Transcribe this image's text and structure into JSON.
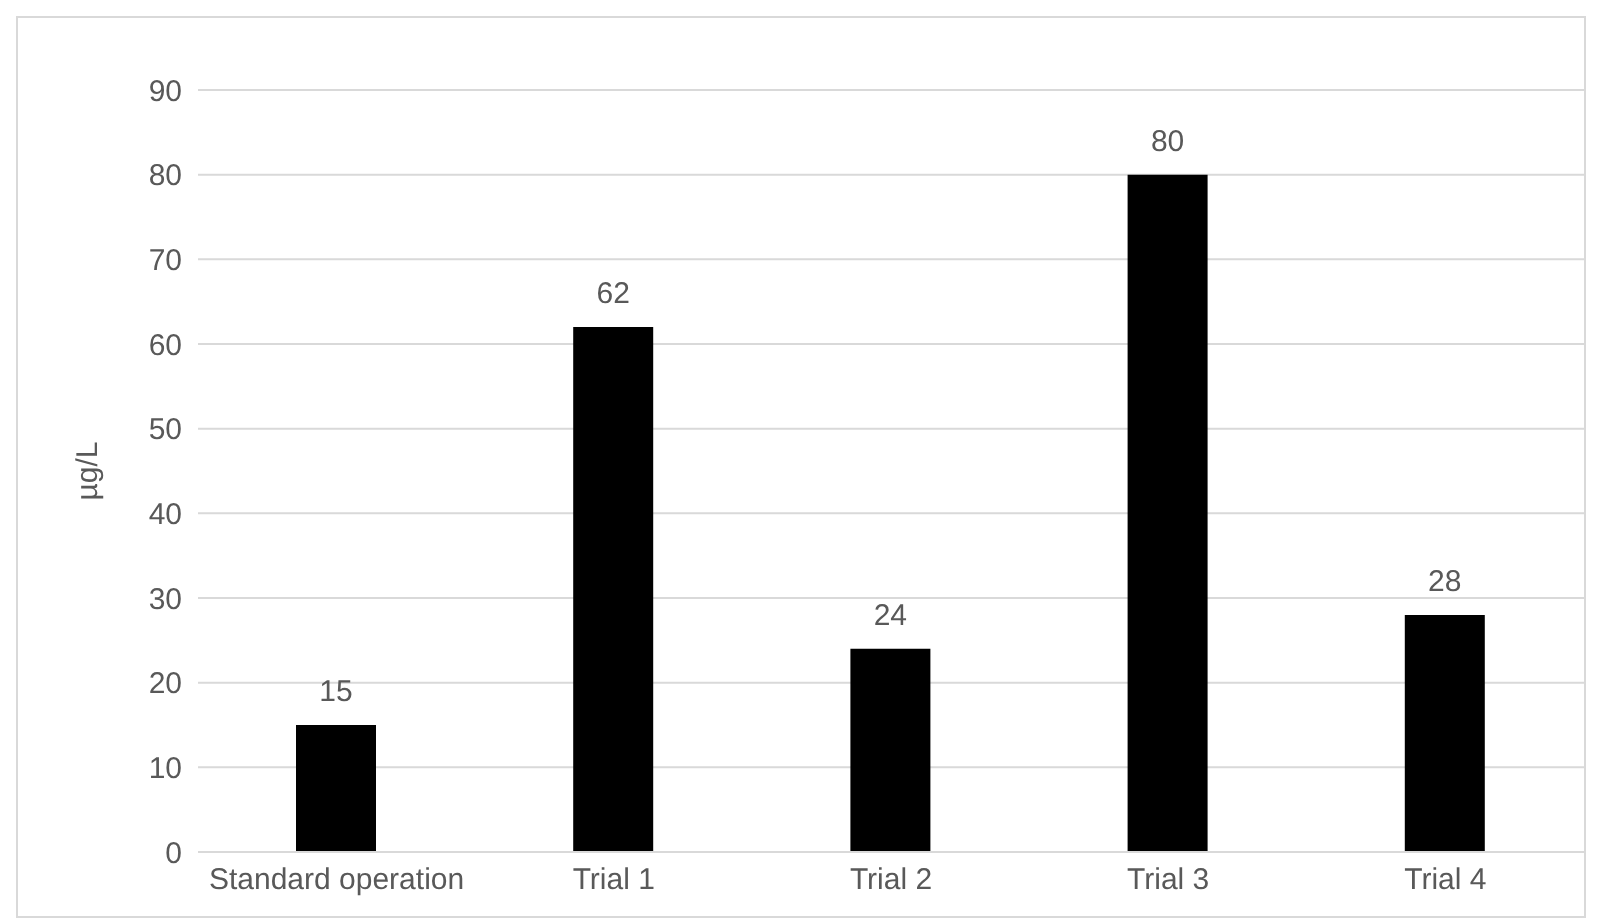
{
  "chart_data": {
    "type": "bar",
    "ylabel": "µg/L",
    "categories": [
      "Standard operation",
      "Trial 1",
      "Trial 2",
      "Trial 3",
      "Trial 4"
    ],
    "values": [
      15,
      62,
      24,
      80,
      28
    ],
    "color": "#000000",
    "ylim": [
      0,
      90
    ],
    "yticks": [
      0,
      10,
      20,
      30,
      40,
      50,
      60,
      70,
      80,
      90
    ],
    "grid": "y",
    "data_labels": true
  }
}
